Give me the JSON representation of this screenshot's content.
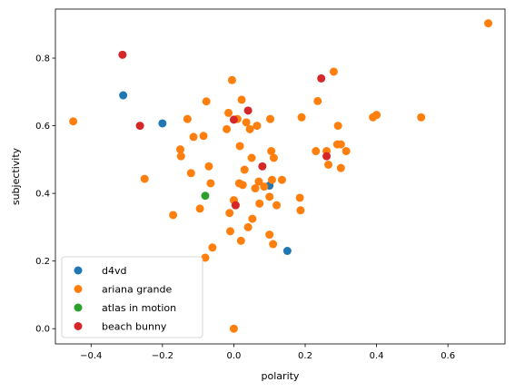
{
  "chart_data": {
    "type": "scatter",
    "title": "",
    "xlabel": "polarity",
    "ylabel": "subjectivity",
    "xlim": [
      -0.5,
      0.76
    ],
    "ylim": [
      -0.045,
      0.945
    ],
    "xticks": [
      -0.4,
      -0.2,
      0.0,
      0.2,
      0.4,
      0.6
    ],
    "xtick_labels": [
      "−0.4",
      "−0.2",
      "0.0",
      "0.2",
      "0.4",
      "0.6"
    ],
    "yticks": [
      0.0,
      0.2,
      0.4,
      0.6,
      0.8
    ],
    "ytick_labels": [
      "0.0",
      "0.2",
      "0.4",
      "0.6",
      "0.8"
    ],
    "grid": false,
    "legend_position": "lower-left",
    "series": [
      {
        "name": "d4vd",
        "color": "#1f77b4",
        "points": [
          [
            -0.31,
            0.69
          ],
          [
            -0.2,
            0.607
          ],
          [
            0.1,
            0.423
          ],
          [
            0.15,
            0.23
          ]
        ]
      },
      {
        "name": "ariana grande",
        "color": "#ff7f0e",
        "points": [
          [
            0.713,
            0.903
          ],
          [
            -0.45,
            0.613
          ],
          [
            -0.25,
            0.443
          ],
          [
            -0.17,
            0.336
          ],
          [
            -0.15,
            0.53
          ],
          [
            -0.148,
            0.51
          ],
          [
            -0.13,
            0.62
          ],
          [
            -0.12,
            0.46
          ],
          [
            -0.113,
            0.567
          ],
          [
            -0.095,
            0.355
          ],
          [
            -0.085,
            0.57
          ],
          [
            -0.08,
            0.21
          ],
          [
            -0.077,
            0.672
          ],
          [
            -0.07,
            0.48
          ],
          [
            -0.065,
            0.43
          ],
          [
            -0.06,
            0.24
          ],
          [
            -0.02,
            0.59
          ],
          [
            -0.015,
            0.638
          ],
          [
            -0.012,
            0.342
          ],
          [
            -0.01,
            0.288
          ],
          [
            -0.005,
            0.735
          ],
          [
            0.0,
            0.38
          ],
          [
            0.0,
            0.0
          ],
          [
            0.005,
            0.365
          ],
          [
            0.01,
            0.62
          ],
          [
            0.015,
            0.43
          ],
          [
            0.017,
            0.54
          ],
          [
            0.02,
            0.26
          ],
          [
            0.022,
            0.677
          ],
          [
            0.025,
            0.425
          ],
          [
            0.03,
            0.47
          ],
          [
            0.035,
            0.61
          ],
          [
            0.04,
            0.3
          ],
          [
            0.045,
            0.59
          ],
          [
            0.05,
            0.505
          ],
          [
            0.052,
            0.325
          ],
          [
            0.06,
            0.415
          ],
          [
            0.065,
            0.6
          ],
          [
            0.07,
            0.435
          ],
          [
            0.072,
            0.37
          ],
          [
            0.085,
            0.42
          ],
          [
            0.1,
            0.39
          ],
          [
            0.1,
            0.278
          ],
          [
            0.102,
            0.62
          ],
          [
            0.105,
            0.525
          ],
          [
            0.107,
            0.44
          ],
          [
            0.11,
            0.25
          ],
          [
            0.112,
            0.505
          ],
          [
            0.12,
            0.365
          ],
          [
            0.135,
            0.44
          ],
          [
            0.185,
            0.387
          ],
          [
            0.187,
            0.35
          ],
          [
            0.19,
            0.625
          ],
          [
            0.23,
            0.525
          ],
          [
            0.235,
            0.673
          ],
          [
            0.26,
            0.525
          ],
          [
            0.265,
            0.485
          ],
          [
            0.28,
            0.76
          ],
          [
            0.29,
            0.545
          ],
          [
            0.292,
            0.6
          ],
          [
            0.3,
            0.475
          ],
          [
            0.3,
            0.545
          ],
          [
            0.315,
            0.525
          ],
          [
            0.39,
            0.625
          ],
          [
            0.4,
            0.632
          ],
          [
            0.525,
            0.625
          ]
        ]
      },
      {
        "name": "atlas in motion",
        "color": "#2ca02c",
        "points": [
          [
            -0.08,
            0.393
          ]
        ]
      },
      {
        "name": "beach bunny",
        "color": "#d62728",
        "points": [
          [
            -0.312,
            0.81
          ],
          [
            -0.263,
            0.6
          ],
          [
            0.0,
            0.618
          ],
          [
            0.005,
            0.365
          ],
          [
            0.04,
            0.645
          ],
          [
            0.08,
            0.48
          ],
          [
            0.245,
            0.74
          ],
          [
            0.26,
            0.51
          ]
        ]
      }
    ]
  }
}
